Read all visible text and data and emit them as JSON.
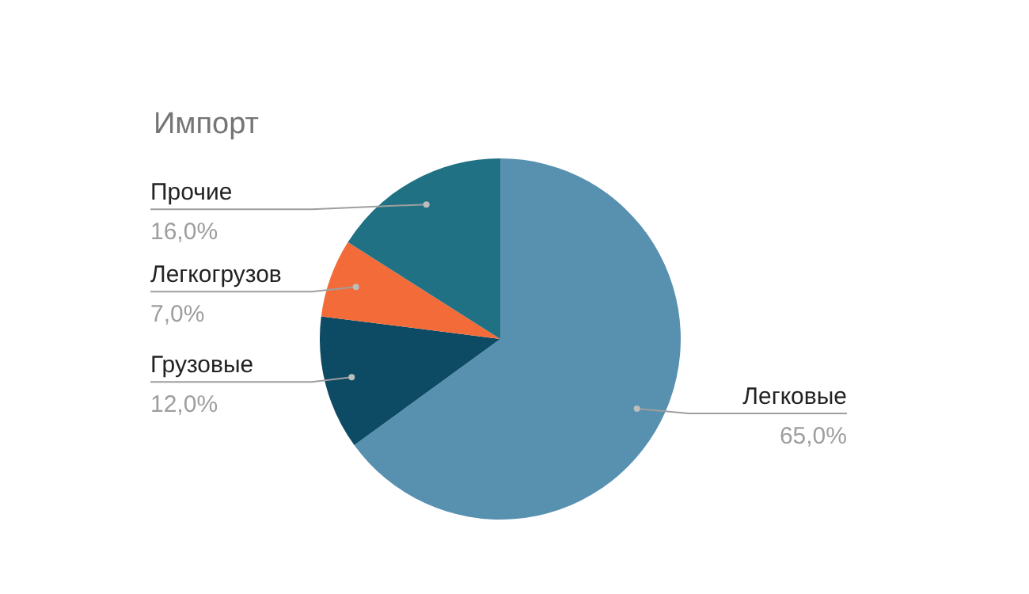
{
  "chart_data": {
    "type": "pie",
    "title": "Импорт",
    "categories": [
      "Легковые",
      "Грузовые",
      "Легкогрузов",
      "Прочие"
    ],
    "values": [
      65,
      12,
      7,
      16
    ],
    "value_labels": [
      "65,0%",
      "12,0%",
      "7,0%",
      "16,0%"
    ],
    "colors": [
      "#5891b0",
      "#0d4a63",
      "#f26b38",
      "#207183"
    ],
    "legend": false
  }
}
